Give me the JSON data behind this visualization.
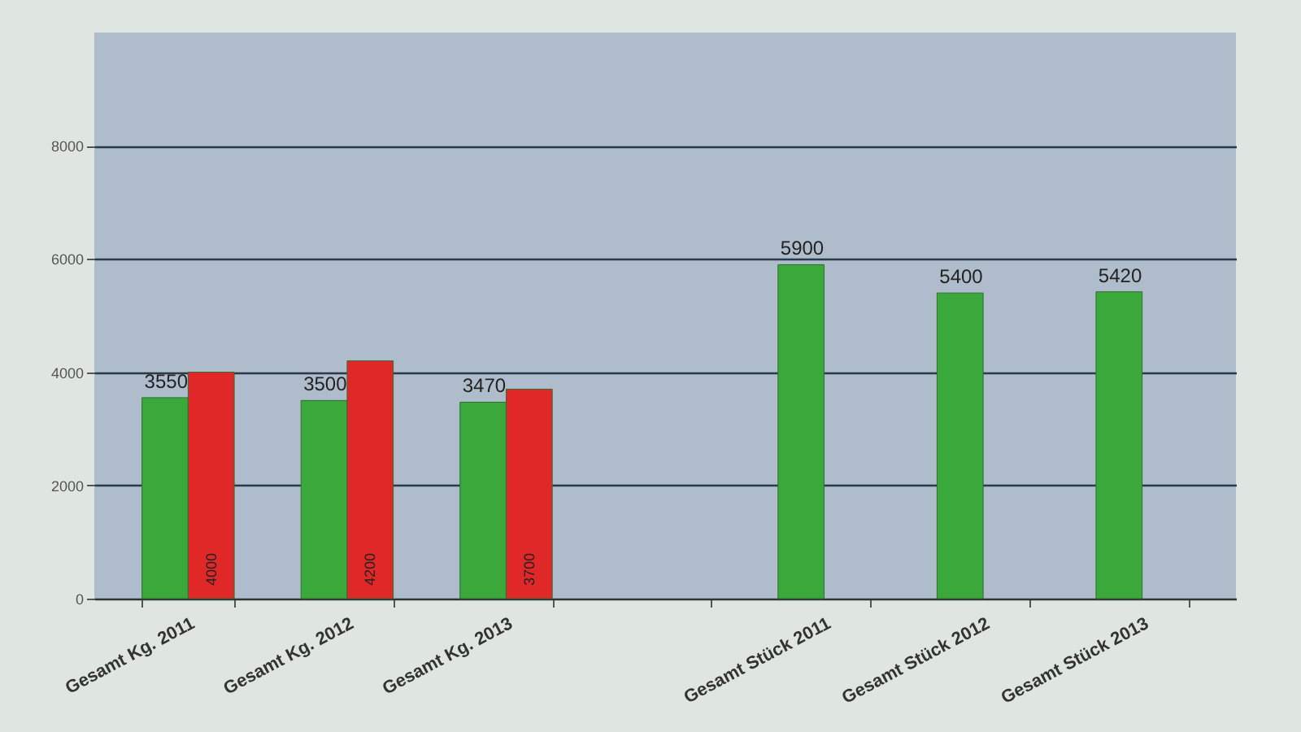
{
  "chart_data": {
    "type": "bar",
    "categories": [
      "Gesamt Kg. 2011",
      "Gesamt Kg. 2012",
      "Gesamt Kg. 2013",
      null,
      "Gesamt Stück 2011",
      "Gesamt Stück 2012",
      "Gesamt Stück 2013"
    ],
    "series": [
      {
        "color": "#3aa83a",
        "values": [
          3550,
          3500,
          3470,
          null,
          5900,
          5400,
          5420
        ]
      },
      {
        "color": "#e02828",
        "values": [
          4000,
          4200,
          3700,
          null,
          null,
          null,
          null
        ]
      }
    ],
    "ylim": [
      0,
      10000
    ],
    "yticks": [
      0,
      2000,
      4000,
      6000,
      8000
    ],
    "grid": "y",
    "data_labels": true,
    "legend": false
  }
}
